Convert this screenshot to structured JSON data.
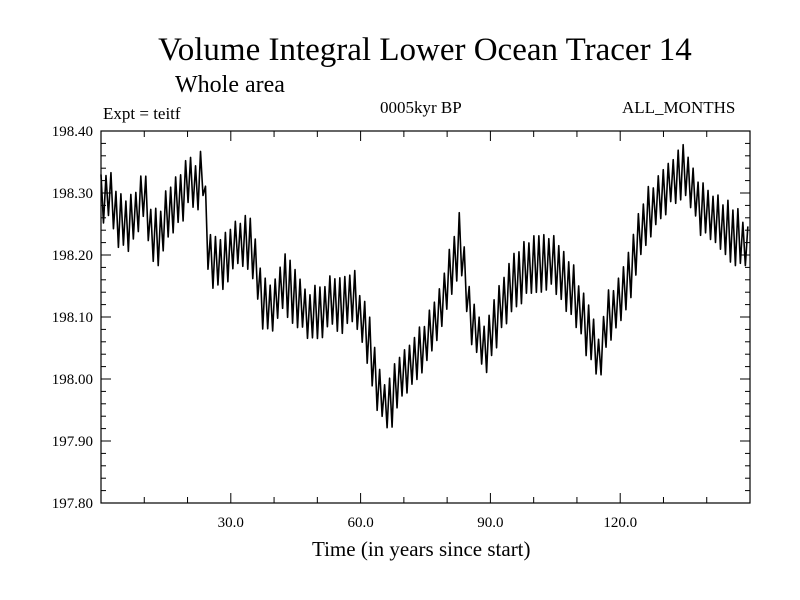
{
  "chart_data": {
    "type": "line",
    "title": "Volume Integral Lower Ocean Tracer 14",
    "subtitle": "Whole area",
    "experiment": "Expt = teitf",
    "period": "0005kyr BP",
    "months": "ALL_MONTHS",
    "xlabel": "Time (in years since start)",
    "ylabel": "",
    "xlim": [
      0,
      150
    ],
    "ylim": [
      197.8,
      198.4
    ],
    "x_ticks": [
      30,
      60,
      90,
      120
    ],
    "x_tick_labels": [
      "30.0",
      "60.0",
      "90.0",
      "120.0"
    ],
    "y_ticks": [
      197.8,
      197.9,
      198.0,
      198.1,
      198.2,
      198.3,
      198.4
    ],
    "y_tick_labels": [
      "197.80",
      "197.90",
      "198.00",
      "198.10",
      "198.20",
      "198.30",
      "198.40"
    ],
    "series": [
      {
        "name": "Lower Ocean Tracer 14",
        "amplitude": 0.04,
        "cycle_years": 1.15,
        "x": [
          0,
          2,
          4,
          6,
          8,
          10,
          12,
          14,
          16,
          18,
          20,
          22,
          23.5,
          25,
          28,
          30,
          32,
          34,
          36,
          37,
          40,
          42,
          44,
          46,
          48,
          50,
          52,
          54,
          56,
          58,
          60,
          62,
          64,
          66,
          68,
          70,
          72,
          74,
          76,
          78,
          80,
          82,
          83,
          85,
          87,
          89,
          91,
          93,
          95,
          97,
          99,
          101,
          103,
          105,
          107,
          109,
          111,
          113,
          115,
          117,
          119,
          121,
          123,
          125,
          127,
          129,
          131,
          133,
          135,
          137,
          139,
          141,
          143,
          145,
          147,
          150
        ],
        "y": [
          198.29,
          198.3,
          198.26,
          198.25,
          198.26,
          198.3,
          198.22,
          198.24,
          198.27,
          198.29,
          198.32,
          198.31,
          198.34,
          198.2,
          198.18,
          198.21,
          198.22,
          198.22,
          198.18,
          198.13,
          198.11,
          198.16,
          198.14,
          198.12,
          198.1,
          198.11,
          198.12,
          198.13,
          198.12,
          198.14,
          198.1,
          198.06,
          197.99,
          197.95,
          197.98,
          198.01,
          198.03,
          198.04,
          198.07,
          198.1,
          198.16,
          198.2,
          198.23,
          198.12,
          198.07,
          198.05,
          198.09,
          198.13,
          198.15,
          198.17,
          198.18,
          198.19,
          198.19,
          198.18,
          198.16,
          198.14,
          198.11,
          198.07,
          198.03,
          198.09,
          198.12,
          198.15,
          198.19,
          198.24,
          198.27,
          198.29,
          198.31,
          198.33,
          198.33,
          198.3,
          198.27,
          198.26,
          198.25,
          198.24,
          198.23,
          198.21
        ]
      }
    ]
  }
}
